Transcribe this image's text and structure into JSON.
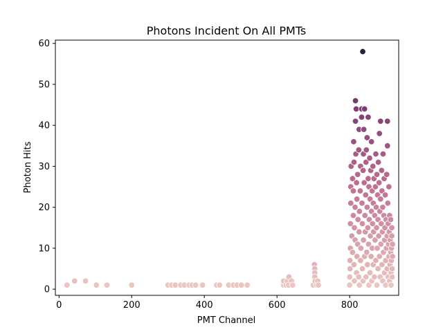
{
  "chart_data": {
    "type": "scatter",
    "title": "Photons Incident On All PMTs",
    "xlabel": "PMT Channel",
    "ylabel": "Photon Hits",
    "xlim": [
      -10,
      935
    ],
    "ylim": [
      -1.5,
      60.8
    ],
    "xticks": [
      0,
      200,
      400,
      600,
      800
    ],
    "yticks": [
      0,
      10,
      20,
      30,
      40,
      50,
      60
    ],
    "grid": false,
    "legend": "none",
    "hue": "Photon Hits",
    "colors": {
      "low": "#ecc9c3",
      "mid": "#c07090",
      "high": "#7a3b72",
      "max": "#2d1e3e"
    },
    "points": [
      [
        22,
        1
      ],
      [
        43,
        2
      ],
      [
        73,
        2
      ],
      [
        103,
        1
      ],
      [
        132,
        1
      ],
      [
        200,
        1
      ],
      [
        300,
        1
      ],
      [
        310,
        1
      ],
      [
        320,
        1
      ],
      [
        335,
        1
      ],
      [
        345,
        1
      ],
      [
        358,
        1
      ],
      [
        366,
        1
      ],
      [
        376,
        1
      ],
      [
        395,
        1
      ],
      [
        434,
        1
      ],
      [
        442,
        1
      ],
      [
        467,
        1
      ],
      [
        480,
        1
      ],
      [
        490,
        1
      ],
      [
        502,
        1
      ],
      [
        518,
        1
      ],
      [
        618,
        1
      ],
      [
        618,
        2
      ],
      [
        625,
        1
      ],
      [
        628,
        2
      ],
      [
        632,
        1
      ],
      [
        633,
        3
      ],
      [
        640,
        2
      ],
      [
        643,
        1
      ],
      [
        700,
        1
      ],
      [
        703,
        6
      ],
      [
        704,
        5
      ],
      [
        704,
        4
      ],
      [
        704,
        3
      ],
      [
        705,
        2
      ],
      [
        709,
        1
      ],
      [
        712,
        2
      ],
      [
        714,
        1
      ],
      [
        800,
        1
      ],
      [
        800,
        3
      ],
      [
        801,
        5
      ],
      [
        801,
        7
      ],
      [
        802,
        10
      ],
      [
        802,
        16
      ],
      [
        803,
        21
      ],
      [
        803,
        25
      ],
      [
        804,
        30
      ],
      [
        806,
        13
      ],
      [
        808,
        9
      ],
      [
        808,
        27
      ],
      [
        810,
        18
      ],
      [
        810,
        24
      ],
      [
        811,
        36
      ],
      [
        812,
        6
      ],
      [
        812,
        31
      ],
      [
        813,
        2
      ],
      [
        813,
        15
      ],
      [
        815,
        12
      ],
      [
        815,
        20
      ],
      [
        816,
        41
      ],
      [
        816,
        46
      ],
      [
        817,
        33
      ],
      [
        818,
        44
      ],
      [
        819,
        4
      ],
      [
        819,
        26
      ],
      [
        820,
        8
      ],
      [
        820,
        22
      ],
      [
        822,
        11
      ],
      [
        822,
        28
      ],
      [
        823,
        17
      ],
      [
        825,
        3
      ],
      [
        825,
        34
      ],
      [
        826,
        14
      ],
      [
        826,
        39
      ],
      [
        827,
        1
      ],
      [
        827,
        19
      ],
      [
        829,
        24
      ],
      [
        830,
        7
      ],
      [
        830,
        30
      ],
      [
        831,
        10
      ],
      [
        833,
        44
      ],
      [
        833,
        42
      ],
      [
        834,
        21
      ],
      [
        835,
        5
      ],
      [
        835,
        16
      ],
      [
        836,
        58
      ],
      [
        837,
        2
      ],
      [
        837,
        29
      ],
      [
        838,
        12
      ],
      [
        838,
        33
      ],
      [
        839,
        39
      ],
      [
        840,
        26
      ],
      [
        841,
        8
      ],
      [
        841,
        44
      ],
      [
        842,
        18
      ],
      [
        843,
        14
      ],
      [
        844,
        23
      ],
      [
        845,
        3
      ],
      [
        845,
        31
      ],
      [
        846,
        34
      ],
      [
        847,
        9
      ],
      [
        848,
        20
      ],
      [
        848,
        37
      ],
      [
        849,
        6
      ],
      [
        850,
        15
      ],
      [
        851,
        27
      ],
      [
        851,
        42
      ],
      [
        852,
        11
      ],
      [
        853,
        1
      ],
      [
        853,
        25
      ],
      [
        854,
        17
      ],
      [
        855,
        32
      ],
      [
        856,
        4
      ],
      [
        856,
        22
      ],
      [
        857,
        13
      ],
      [
        858,
        29
      ],
      [
        859,
        8
      ],
      [
        860,
        19
      ],
      [
        860,
        36
      ],
      [
        861,
        2
      ],
      [
        862,
        24
      ],
      [
        862,
        10
      ],
      [
        863,
        16
      ],
      [
        864,
        30
      ],
      [
        865,
        6
      ],
      [
        865,
        21
      ],
      [
        866,
        14
      ],
      [
        867,
        27
      ],
      [
        868,
        3
      ],
      [
        869,
        18
      ],
      [
        870,
        12
      ],
      [
        871,
        25
      ],
      [
        872,
        7
      ],
      [
        872,
        33
      ],
      [
        873,
        20
      ],
      [
        874,
        15
      ],
      [
        875,
        1
      ],
      [
        875,
        28
      ],
      [
        876,
        10
      ],
      [
        877,
        23
      ],
      [
        878,
        5
      ],
      [
        878,
        17
      ],
      [
        879,
        31
      ],
      [
        880,
        13
      ],
      [
        881,
        26
      ],
      [
        882,
        8
      ],
      [
        882,
        38
      ],
      [
        883,
        19
      ],
      [
        884,
        3
      ],
      [
        885,
        22
      ],
      [
        885,
        41
      ],
      [
        886,
        11
      ],
      [
        887,
        16
      ],
      [
        888,
        29
      ],
      [
        889,
        6
      ],
      [
        889,
        24
      ],
      [
        890,
        14
      ],
      [
        891,
        2
      ],
      [
        891,
        20
      ],
      [
        892,
        33
      ],
      [
        893,
        9
      ],
      [
        894,
        18
      ],
      [
        895,
        27
      ],
      [
        896,
        4
      ],
      [
        896,
        12
      ],
      [
        897,
        15
      ],
      [
        898,
        23
      ],
      [
        899,
        1
      ],
      [
        899,
        7
      ],
      [
        900,
        17
      ],
      [
        901,
        10
      ],
      [
        902,
        28
      ],
      [
        903,
        5
      ],
      [
        903,
        13
      ],
      [
        904,
        35
      ],
      [
        904,
        41
      ],
      [
        905,
        21
      ],
      [
        906,
        3
      ],
      [
        906,
        16
      ],
      [
        907,
        11
      ],
      [
        908,
        8
      ],
      [
        908,
        25
      ],
      [
        909,
        14
      ],
      [
        910,
        2
      ],
      [
        910,
        18
      ],
      [
        911,
        6
      ],
      [
        912,
        12
      ],
      [
        913,
        9
      ],
      [
        913,
        17
      ],
      [
        914,
        1
      ],
      [
        914,
        4
      ],
      [
        915,
        7
      ],
      [
        915,
        10
      ],
      [
        916,
        13
      ],
      [
        916,
        15
      ],
      [
        917,
        3
      ],
      [
        917,
        5
      ],
      [
        918,
        8
      ],
      [
        918,
        11
      ]
    ]
  }
}
